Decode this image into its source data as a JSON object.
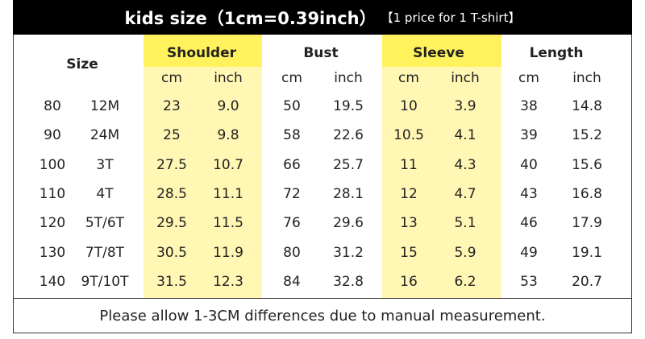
{
  "header": {
    "title": "kids size（1cm=0.39inch）",
    "note": "【1 price for 1 T-shirt】"
  },
  "table": {
    "groups": [
      "Size",
      "Shoulder",
      "Bust",
      "Sleeve",
      "Length"
    ],
    "units": [
      "cm",
      "inch",
      "cm",
      "inch",
      "cm",
      "inch",
      "cm",
      "inch"
    ],
    "rows": [
      [
        "80",
        "12M",
        "23",
        "9.0",
        "50",
        "19.5",
        "10",
        "3.9",
        "38",
        "14.8"
      ],
      [
        "90",
        "24M",
        "25",
        "9.8",
        "58",
        "22.6",
        "10.5",
        "4.1",
        "39",
        "15.2"
      ],
      [
        "100",
        "3T",
        "27.5",
        "10.7",
        "66",
        "25.7",
        "11",
        "4.3",
        "40",
        "15.6"
      ],
      [
        "110",
        "4T",
        "28.5",
        "11.1",
        "72",
        "28.1",
        "12",
        "4.7",
        "43",
        "16.8"
      ],
      [
        "120",
        "5T/6T",
        "29.5",
        "11.5",
        "76",
        "29.6",
        "13",
        "5.1",
        "46",
        "17.9"
      ],
      [
        "130",
        "7T/8T",
        "30.5",
        "11.9",
        "80",
        "31.2",
        "15",
        "5.9",
        "49",
        "19.1"
      ],
      [
        "140",
        "9T/10T",
        "31.5",
        "12.3",
        "84",
        "32.8",
        "16",
        "6.2",
        "53",
        "20.7"
      ]
    ]
  },
  "footer": "Please allow 1-3CM differences due to manual measurement."
}
